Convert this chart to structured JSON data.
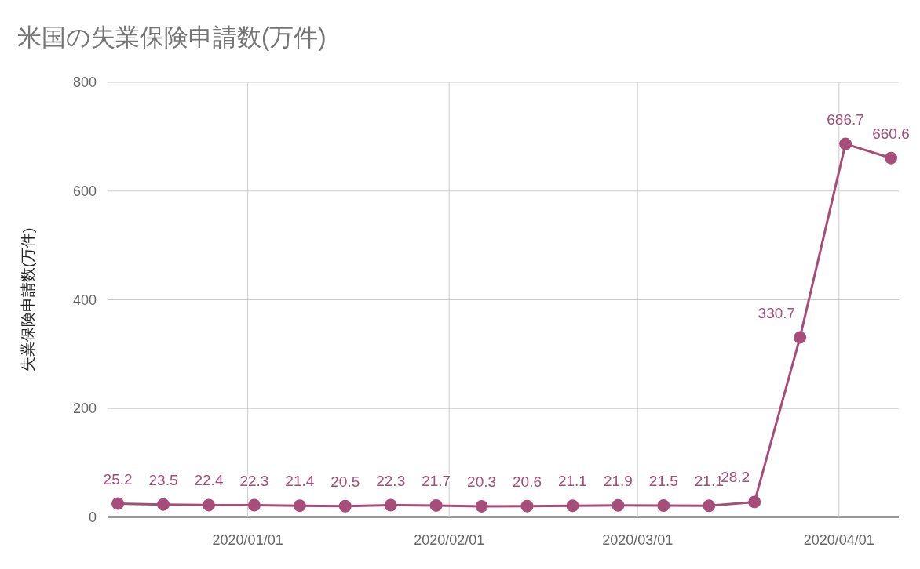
{
  "chart_data": {
    "type": "line",
    "title": "米国の失業保険申請数(万件)",
    "ylabel": "失業保険申請数(万件)",
    "x": [
      "2019-12-12",
      "2019-12-19",
      "2019-12-26",
      "2020-01-02",
      "2020-01-09",
      "2020-01-16",
      "2020-01-23",
      "2020-01-30",
      "2020-02-06",
      "2020-02-13",
      "2020-02-20",
      "2020-02-27",
      "2020-03-05",
      "2020-03-12",
      "2020-03-19",
      "2020-03-26",
      "2020-04-02",
      "2020-04-09"
    ],
    "series": [
      {
        "color": "#a64d79",
        "values": [
          25.2,
          23.5,
          22.4,
          22.3,
          21.4,
          20.5,
          22.3,
          21.7,
          20.3,
          20.6,
          21.1,
          21.9,
          21.5,
          21.1,
          28.2,
          330.7,
          686.7,
          660.6
        ]
      }
    ],
    "xlim": [
      "2019-12-10T10:00",
      "2020-04-10T05:00"
    ],
    "xticks": [
      {
        "value": "2020-01-01",
        "label": "2020/01/01"
      },
      {
        "value": "2020-02-01",
        "label": "2020/02/01"
      },
      {
        "value": "2020-03-01",
        "label": "2020/03/01"
      },
      {
        "value": "2020-04-01",
        "label": "2020/04/01"
      }
    ],
    "ylim": [
      0,
      800
    ],
    "yticks": [
      0,
      200,
      400,
      600,
      800
    ],
    "grid": true,
    "marker": "circle",
    "line_style": "solid",
    "data_labels": true
  }
}
